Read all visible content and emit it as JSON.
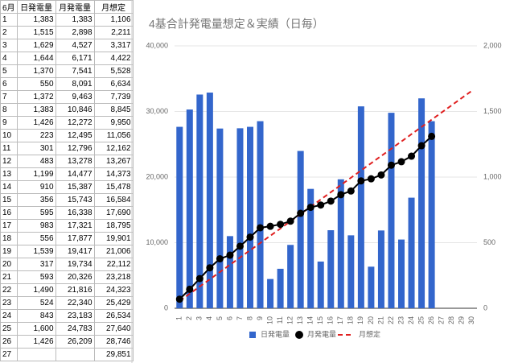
{
  "table": {
    "header": [
      "6月",
      "日発電量",
      "月発電量",
      "月想定"
    ],
    "rows": [
      [
        "1",
        "1,383",
        "1,383",
        "1,106"
      ],
      [
        "2",
        "1,515",
        "2,898",
        "2,211"
      ],
      [
        "3",
        "1,629",
        "4,527",
        "3,317"
      ],
      [
        "4",
        "1,644",
        "6,171",
        "4,422"
      ],
      [
        "5",
        "1,370",
        "7,541",
        "5,528"
      ],
      [
        "6",
        "550",
        "8,091",
        "6,634"
      ],
      [
        "7",
        "1,372",
        "9,463",
        "7,739"
      ],
      [
        "8",
        "1,383",
        "10,846",
        "8,845"
      ],
      [
        "9",
        "1,426",
        "12,272",
        "9,950"
      ],
      [
        "10",
        "223",
        "12,495",
        "11,056"
      ],
      [
        "11",
        "301",
        "12,796",
        "12,162"
      ],
      [
        "12",
        "483",
        "13,278",
        "13,267"
      ],
      [
        "13",
        "1,199",
        "14,477",
        "14,373"
      ],
      [
        "14",
        "910",
        "15,387",
        "15,478"
      ],
      [
        "15",
        "356",
        "15,743",
        "16,584"
      ],
      [
        "16",
        "595",
        "16,338",
        "17,690"
      ],
      [
        "17",
        "983",
        "17,321",
        "18,795"
      ],
      [
        "18",
        "556",
        "17,877",
        "19,901"
      ],
      [
        "19",
        "1,539",
        "19,417",
        "21,006"
      ],
      [
        "20",
        "317",
        "19,734",
        "22,112"
      ],
      [
        "21",
        "593",
        "20,326",
        "23,218"
      ],
      [
        "22",
        "1,490",
        "21,816",
        "24,323"
      ],
      [
        "23",
        "524",
        "22,340",
        "25,429"
      ],
      [
        "24",
        "843",
        "23,183",
        "26,534"
      ],
      [
        "25",
        "1,600",
        "24,783",
        "27,640"
      ],
      [
        "26",
        "1,426",
        "26,209",
        "28,746"
      ],
      [
        "27",
        null,
        null,
        "29,851"
      ]
    ]
  },
  "chart_data": {
    "type": "bar",
    "title": "4基合計発電量想定＆実績（日毎）",
    "categories": [
      "1",
      "2",
      "3",
      "4",
      "5",
      "6",
      "7",
      "8",
      "9",
      "10",
      "11",
      "12",
      "13",
      "14",
      "15",
      "16",
      "17",
      "18",
      "19",
      "20",
      "21",
      "22",
      "23",
      "24",
      "25",
      "26",
      "27",
      "28",
      "29",
      "30"
    ],
    "series": [
      {
        "name": "日発電量",
        "type": "bar",
        "axis": "y2",
        "color": "#3366cc",
        "values": [
          1383,
          1515,
          1629,
          1644,
          1370,
          550,
          1372,
          1383,
          1426,
          223,
          301,
          483,
          1199,
          910,
          356,
          595,
          983,
          556,
          1539,
          317,
          593,
          1490,
          524,
          843,
          1600,
          1426,
          null,
          null,
          null,
          null
        ]
      },
      {
        "name": "月発電量",
        "type": "line",
        "color": "#000000",
        "values": [
          1383,
          2898,
          4527,
          6171,
          7541,
          8091,
          9463,
          10846,
          12272,
          12495,
          12796,
          13278,
          14477,
          15387,
          15743,
          16338,
          17321,
          17877,
          19417,
          19734,
          20326,
          21816,
          22340,
          23183,
          24783,
          26209,
          null,
          null,
          null,
          null
        ]
      },
      {
        "name": "月想定",
        "type": "dashed",
        "color": "#e02020",
        "values": [
          1106,
          2211,
          3317,
          4422,
          5528,
          6634,
          7739,
          8845,
          9950,
          11056,
          12162,
          13267,
          14373,
          15478,
          16584,
          17690,
          18795,
          19901,
          21006,
          22112,
          23218,
          24323,
          25429,
          26534,
          27640,
          28746,
          29851,
          30957,
          32062,
          33168
        ]
      }
    ],
    "ylim": [
      0,
      40000
    ],
    "yticks": [
      0,
      {
        "value": 10000,
        "label": "10,000"
      },
      {
        "value": 20000,
        "label": "20,000"
      },
      {
        "value": 30000,
        "label": "30,000"
      },
      {
        "value": 40000,
        "label": "40,000"
      }
    ],
    "y2lim": [
      0,
      2000
    ],
    "y2ticks": [
      0,
      500,
      {
        "value": 1000,
        "label": "1,000"
      },
      {
        "value": 1500,
        "label": "1,500"
      },
      {
        "value": 2000,
        "label": "2,000"
      }
    ],
    "grid": true
  }
}
